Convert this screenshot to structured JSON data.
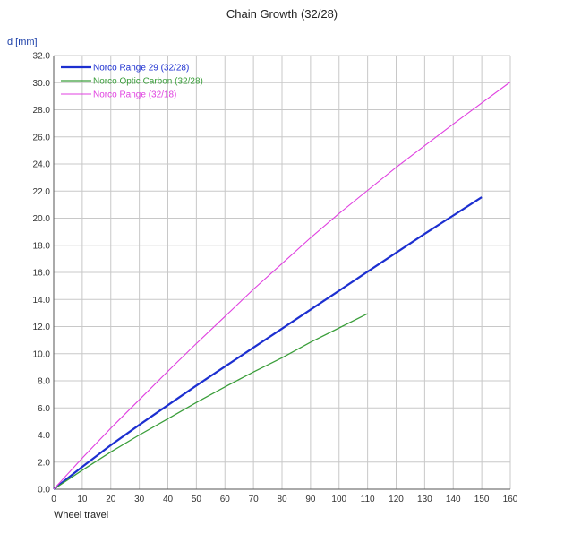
{
  "chart_data": {
    "type": "line",
    "title": "Chain Growth (32/28)",
    "ylabel": "d [mm]",
    "xlabel": "Wheel travel",
    "xlim": [
      0,
      160
    ],
    "ylim": [
      0,
      32
    ],
    "x_ticks": [
      0,
      10,
      20,
      30,
      40,
      50,
      60,
      70,
      80,
      90,
      100,
      110,
      120,
      130,
      140,
      150,
      160
    ],
    "y_ticks": [
      "0.0",
      "2.0",
      "4.0",
      "6.0",
      "8.0",
      "10.0",
      "12.0",
      "14.0",
      "16.0",
      "18.0",
      "20.0",
      "22.0",
      "24.0",
      "26.0",
      "28.0",
      "30.0",
      "32.0"
    ],
    "grid": true,
    "legend_position": "top-left",
    "series": [
      {
        "name": "Norco Range 29 (32/28)",
        "color": "#1c2fd0",
        "x": [
          0,
          10,
          20,
          30,
          40,
          50,
          60,
          70,
          80,
          90,
          100,
          110,
          120,
          130,
          140,
          150
        ],
        "y": [
          0,
          1.65,
          3.25,
          4.75,
          6.2,
          7.65,
          9.05,
          10.45,
          11.85,
          13.25,
          14.65,
          16.05,
          17.45,
          18.85,
          20.2,
          21.55
        ]
      },
      {
        "name": "Norco Optic Carbon (32/28)",
        "color": "#3a9e3a",
        "x": [
          0,
          10,
          20,
          30,
          40,
          50,
          60,
          70,
          80,
          90,
          100,
          110
        ],
        "y": [
          0,
          1.4,
          2.75,
          4.0,
          5.2,
          6.4,
          7.55,
          8.65,
          9.7,
          10.85,
          11.9,
          12.95
        ]
      },
      {
        "name": "Norco Range (32/18)",
        "color": "#e040e0",
        "x": [
          0,
          10,
          20,
          30,
          40,
          50,
          60,
          70,
          80,
          90,
          100,
          110,
          120,
          130,
          140,
          150,
          160
        ],
        "y": [
          0,
          2.3,
          4.5,
          6.6,
          8.7,
          10.75,
          12.75,
          14.75,
          16.65,
          18.55,
          20.35,
          22.05,
          23.75,
          25.35,
          26.95,
          28.5,
          30.05
        ]
      }
    ]
  }
}
